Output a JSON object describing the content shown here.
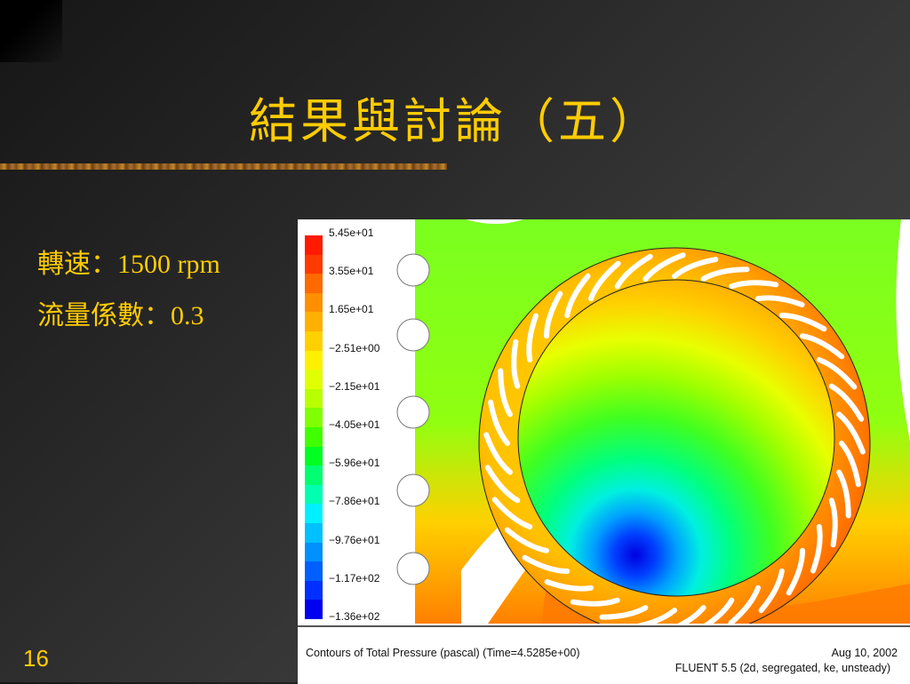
{
  "slide": {
    "title": "結果與討論（五）",
    "bullets": [
      "轉速：1500 rpm",
      "流量係數：0.3"
    ],
    "number": "16"
  },
  "figure": {
    "legend_labels": [
      "5.45e+01",
      "3.55e+01",
      "1.65e+01",
      "−2.51e+00",
      "−2.15e+01",
      "−4.05e+01",
      "−5.96e+01",
      "−7.86e+01",
      "−9.76e+01",
      "−1.17e+02",
      "−1.36e+02"
    ],
    "colormap": [
      "#ff1a00",
      "#ff3a00",
      "#ff6a00",
      "#ff8f00",
      "#ffb000",
      "#ffd000",
      "#fff000",
      "#e0ff00",
      "#b8ff00",
      "#80ff00",
      "#40ff00",
      "#00ff20",
      "#00ff70",
      "#00ffb0",
      "#00f0ff",
      "#00c0ff",
      "#0090ff",
      "#0060ff",
      "#0030ff",
      "#0000f0"
    ],
    "caption_left": "Contours of Total Pressure (pascal)  (Time=4.5285e+00)",
    "caption_date": "Aug 10, 2002",
    "caption_solver": "FLUENT 5.5 (2d, segregated, ke, unsteady)"
  }
}
